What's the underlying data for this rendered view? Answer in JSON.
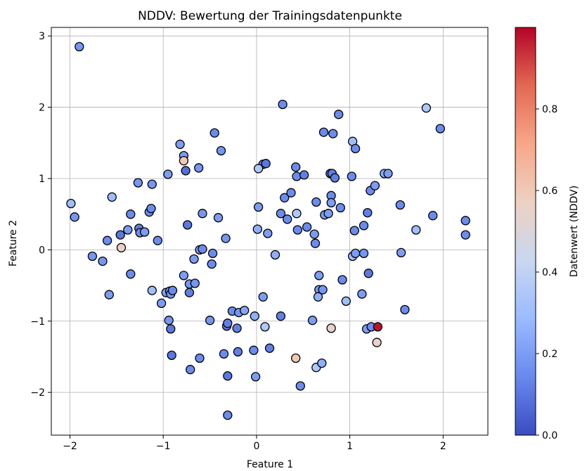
{
  "chart_data": {
    "type": "scatter",
    "title": "NDDV: Bewertung der Trainingsdatenpunkte",
    "xlabel": "Feature 1",
    "ylabel": "Feature 2",
    "xlim": [
      -2.2,
      2.48
    ],
    "ylim": [
      -2.6,
      3.12
    ],
    "xticks": [
      -2,
      -1,
      0,
      1,
      2
    ],
    "yticks": [
      -2,
      -1,
      0,
      1,
      2,
      3
    ],
    "xtick_labels": [
      "−2",
      "−1",
      "0",
      "1",
      "2"
    ],
    "ytick_labels": [
      "−2",
      "−1",
      "0",
      "1",
      "2",
      "3"
    ],
    "grid": true,
    "colorbar": {
      "label": "Datenwert (NDDV)",
      "range": [
        0,
        1
      ],
      "ticks": [
        0.0,
        0.2,
        0.4,
        0.6,
        0.8
      ],
      "tick_labels": [
        "0.0",
        "0.2",
        "0.4",
        "0.6",
        "0.8"
      ],
      "colormap": "coolwarm",
      "stops": [
        "#3b4cc0",
        "#6889ee",
        "#9abbff",
        "#c9d7f0",
        "#edd1c2",
        "#f7a789",
        "#e26952",
        "#b40426"
      ]
    },
    "point_style": {
      "edge_color": "#000000"
    },
    "points": [
      {
        "x": -1.9,
        "y": 2.85,
        "v": 0.18
      },
      {
        "x": -1.99,
        "y": 0.65,
        "v": 0.3
      },
      {
        "x": -1.95,
        "y": 0.46,
        "v": 0.18
      },
      {
        "x": -1.55,
        "y": 0.74,
        "v": 0.3
      },
      {
        "x": -1.6,
        "y": 0.13,
        "v": 0.15
      },
      {
        "x": -1.46,
        "y": 0.21,
        "v": 0.1
      },
      {
        "x": -1.45,
        "y": 0.03,
        "v": 0.55
      },
      {
        "x": -1.38,
        "y": 0.28,
        "v": 0.2
      },
      {
        "x": -1.35,
        "y": 0.5,
        "v": 0.15
      },
      {
        "x": -1.27,
        "y": 0.94,
        "v": 0.18
      },
      {
        "x": -1.26,
        "y": 0.3,
        "v": 0.12
      },
      {
        "x": -1.25,
        "y": 0.24,
        "v": 0.15
      },
      {
        "x": -1.2,
        "y": 0.25,
        "v": 0.2
      },
      {
        "x": -1.15,
        "y": 0.53,
        "v": 0.15
      },
      {
        "x": -1.13,
        "y": 0.58,
        "v": 0.15
      },
      {
        "x": -1.12,
        "y": 0.92,
        "v": 0.18
      },
      {
        "x": -1.06,
        "y": 0.13,
        "v": 0.15
      },
      {
        "x": -1.76,
        "y": -0.09,
        "v": 0.18
      },
      {
        "x": -1.65,
        "y": -0.16,
        "v": 0.18
      },
      {
        "x": -1.58,
        "y": -0.63,
        "v": 0.2
      },
      {
        "x": -1.35,
        "y": -0.34,
        "v": 0.15
      },
      {
        "x": -1.12,
        "y": -0.57,
        "v": 0.3
      },
      {
        "x": -1.02,
        "y": -0.75,
        "v": 0.2
      },
      {
        "x": -0.97,
        "y": -0.6,
        "v": 0.2
      },
      {
        "x": -0.93,
        "y": -0.58,
        "v": 0.2
      },
      {
        "x": -0.92,
        "y": -0.62,
        "v": 0.18
      },
      {
        "x": -0.9,
        "y": -0.57,
        "v": 0.15
      },
      {
        "x": -0.95,
        "y": 1.06,
        "v": 0.2
      },
      {
        "x": -0.82,
        "y": 1.48,
        "v": 0.2
      },
      {
        "x": -0.78,
        "y": 1.32,
        "v": 0.2
      },
      {
        "x": -0.78,
        "y": 1.25,
        "v": 0.6
      },
      {
        "x": -0.76,
        "y": 1.11,
        "v": 0.08
      },
      {
        "x": -0.62,
        "y": 1.15,
        "v": 0.18
      },
      {
        "x": -0.58,
        "y": 0.51,
        "v": 0.18
      },
      {
        "x": -0.74,
        "y": 0.35,
        "v": 0.1
      },
      {
        "x": -0.61,
        "y": 0.0,
        "v": 0.2
      },
      {
        "x": -0.58,
        "y": 0.01,
        "v": 0.15
      },
      {
        "x": -0.67,
        "y": -0.13,
        "v": 0.2
      },
      {
        "x": -0.47,
        "y": -0.05,
        "v": 0.15
      },
      {
        "x": -0.48,
        "y": -0.2,
        "v": 0.15
      },
      {
        "x": -0.78,
        "y": -0.36,
        "v": 0.2
      },
      {
        "x": -0.72,
        "y": -0.48,
        "v": 0.18
      },
      {
        "x": -0.66,
        "y": -0.47,
        "v": 0.18
      },
      {
        "x": -0.72,
        "y": -0.6,
        "v": 0.12
      },
      {
        "x": -0.94,
        "y": -0.99,
        "v": 0.18
      },
      {
        "x": -0.92,
        "y": -1.11,
        "v": 0.1
      },
      {
        "x": -0.91,
        "y": -1.48,
        "v": 0.1
      },
      {
        "x": -0.71,
        "y": -1.68,
        "v": 0.15
      },
      {
        "x": -0.61,
        "y": -1.52,
        "v": 0.15
      },
      {
        "x": -0.5,
        "y": -0.99,
        "v": 0.18
      },
      {
        "x": -0.45,
        "y": 1.64,
        "v": 0.15
      },
      {
        "x": -0.38,
        "y": 1.39,
        "v": 0.18
      },
      {
        "x": -0.41,
        "y": 0.45,
        "v": 0.2
      },
      {
        "x": -0.33,
        "y": 0.16,
        "v": 0.18
      },
      {
        "x": -0.32,
        "y": -1.07,
        "v": 0.1
      },
      {
        "x": -0.31,
        "y": -1.03,
        "v": 0.12
      },
      {
        "x": -0.26,
        "y": -0.86,
        "v": 0.15
      },
      {
        "x": -0.21,
        "y": -1.1,
        "v": 0.12
      },
      {
        "x": -0.19,
        "y": -0.88,
        "v": 0.18
      },
      {
        "x": -0.13,
        "y": -0.85,
        "v": 0.22
      },
      {
        "x": -0.35,
        "y": -1.46,
        "v": 0.15
      },
      {
        "x": -0.31,
        "y": -1.77,
        "v": 0.1
      },
      {
        "x": -0.2,
        "y": -1.43,
        "v": 0.12
      },
      {
        "x": -0.31,
        "y": -2.32,
        "v": 0.15
      },
      {
        "x": -0.03,
        "y": -1.41,
        "v": 0.15
      },
      {
        "x": -0.01,
        "y": -1.78,
        "v": 0.2
      },
      {
        "x": 0.28,
        "y": 2.04,
        "v": 0.15
      },
      {
        "x": 0.07,
        "y": 1.2,
        "v": 0.12
      },
      {
        "x": 0.1,
        "y": 1.21,
        "v": 0.1
      },
      {
        "x": 0.02,
        "y": 1.14,
        "v": 0.35
      },
      {
        "x": 0.02,
        "y": 0.6,
        "v": 0.2
      },
      {
        "x": 0.01,
        "y": 0.29,
        "v": 0.25
      },
      {
        "x": 0.12,
        "y": 0.23,
        "v": 0.2
      },
      {
        "x": 0.2,
        "y": -0.07,
        "v": 0.25
      },
      {
        "x": 0.07,
        "y": -0.66,
        "v": 0.2
      },
      {
        "x": -0.02,
        "y": -0.93,
        "v": 0.25
      },
      {
        "x": 0.09,
        "y": -1.08,
        "v": 0.35
      },
      {
        "x": 0.14,
        "y": -1.38,
        "v": 0.12
      },
      {
        "x": 0.26,
        "y": -0.93,
        "v": 0.12
      },
      {
        "x": 0.26,
        "y": 0.51,
        "v": 0.15
      },
      {
        "x": 0.3,
        "y": 0.73,
        "v": 0.15
      },
      {
        "x": 0.33,
        "y": 0.43,
        "v": 0.15
      },
      {
        "x": 0.37,
        "y": 0.8,
        "v": 0.15
      },
      {
        "x": 0.42,
        "y": 1.16,
        "v": 0.15
      },
      {
        "x": 0.43,
        "y": 1.03,
        "v": 0.15
      },
      {
        "x": 0.51,
        "y": 1.05,
        "v": 0.12
      },
      {
        "x": 0.43,
        "y": 0.51,
        "v": 0.35
      },
      {
        "x": 0.44,
        "y": 0.28,
        "v": 0.15
      },
      {
        "x": 0.54,
        "y": 0.32,
        "v": 0.15
      },
      {
        "x": 0.62,
        "y": 0.22,
        "v": 0.2
      },
      {
        "x": 0.63,
        "y": 0.09,
        "v": 0.15
      },
      {
        "x": 0.64,
        "y": 0.67,
        "v": 0.15
      },
      {
        "x": 0.72,
        "y": 1.65,
        "v": 0.15
      },
      {
        "x": 0.82,
        "y": 1.63,
        "v": 0.15
      },
      {
        "x": 0.88,
        "y": 1.9,
        "v": 0.15
      },
      {
        "x": 0.79,
        "y": 1.07,
        "v": 0.12
      },
      {
        "x": 0.81,
        "y": 1.07,
        "v": 0.12
      },
      {
        "x": 0.84,
        "y": 1.01,
        "v": 0.12
      },
      {
        "x": 0.8,
        "y": 0.76,
        "v": 0.15
      },
      {
        "x": 0.8,
        "y": 0.66,
        "v": 0.2
      },
      {
        "x": 0.73,
        "y": 0.49,
        "v": 0.2
      },
      {
        "x": 0.77,
        "y": 0.51,
        "v": 0.2
      },
      {
        "x": 0.9,
        "y": 0.59,
        "v": 0.15
      },
      {
        "x": 0.67,
        "y": -0.36,
        "v": 0.2
      },
      {
        "x": 0.67,
        "y": -0.56,
        "v": 0.2
      },
      {
        "x": 0.71,
        "y": -0.56,
        "v": 0.18
      },
      {
        "x": 0.66,
        "y": -0.66,
        "v": 0.25
      },
      {
        "x": 0.92,
        "y": -0.42,
        "v": 0.15
      },
      {
        "x": 0.96,
        "y": -0.72,
        "v": 0.3
      },
      {
        "x": 0.6,
        "y": -0.99,
        "v": 0.2
      },
      {
        "x": 0.8,
        "y": -1.1,
        "v": 0.55
      },
      {
        "x": 0.42,
        "y": -1.52,
        "v": 0.6
      },
      {
        "x": 0.47,
        "y": -1.91,
        "v": 0.15
      },
      {
        "x": 0.64,
        "y": -1.65,
        "v": 0.35
      },
      {
        "x": 0.7,
        "y": -1.59,
        "v": 0.25
      },
      {
        "x": 1.03,
        "y": 1.52,
        "v": 0.3
      },
      {
        "x": 1.06,
        "y": 1.42,
        "v": 0.15
      },
      {
        "x": 1.02,
        "y": 1.03,
        "v": 0.15
      },
      {
        "x": 1.05,
        "y": 0.27,
        "v": 0.15
      },
      {
        "x": 1.03,
        "y": -0.09,
        "v": 0.3
      },
      {
        "x": 1.06,
        "y": -0.05,
        "v": 0.2
      },
      {
        "x": 1.15,
        "y": -0.05,
        "v": 0.18
      },
      {
        "x": 1.15,
        "y": 0.34,
        "v": 0.15
      },
      {
        "x": 1.19,
        "y": 0.52,
        "v": 0.12
      },
      {
        "x": 1.22,
        "y": 0.83,
        "v": 0.15
      },
      {
        "x": 1.27,
        "y": 0.9,
        "v": 0.2
      },
      {
        "x": 1.13,
        "y": -0.62,
        "v": 0.2
      },
      {
        "x": 1.2,
        "y": -0.33,
        "v": 0.1
      },
      {
        "x": 1.18,
        "y": -1.11,
        "v": 0.2
      },
      {
        "x": 1.23,
        "y": -1.08,
        "v": 0.15
      },
      {
        "x": 1.3,
        "y": -1.08,
        "v": 0.98
      },
      {
        "x": 1.29,
        "y": -1.3,
        "v": 0.55
      },
      {
        "x": 1.37,
        "y": 1.07,
        "v": 0.25
      },
      {
        "x": 1.41,
        "y": 1.07,
        "v": 0.2
      },
      {
        "x": 1.54,
        "y": 0.63,
        "v": 0.15
      },
      {
        "x": 1.55,
        "y": -0.04,
        "v": 0.2
      },
      {
        "x": 1.59,
        "y": -0.84,
        "v": 0.15
      },
      {
        "x": 1.71,
        "y": 0.28,
        "v": 0.3
      },
      {
        "x": 1.82,
        "y": 1.99,
        "v": 0.35
      },
      {
        "x": 1.89,
        "y": 0.48,
        "v": 0.15
      },
      {
        "x": 1.97,
        "y": 1.7,
        "v": 0.15
      },
      {
        "x": 2.24,
        "y": 0.41,
        "v": 0.15
      },
      {
        "x": 2.24,
        "y": 0.21,
        "v": 0.15
      }
    ]
  }
}
